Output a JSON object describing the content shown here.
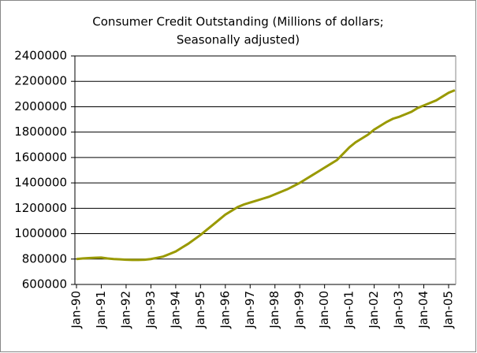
{
  "chart_data": {
    "type": "line",
    "title": [
      "Consumer Credit Outstanding (Millions of dollars;",
      "Seasonally adjusted)"
    ],
    "categories": [
      "Jan-90",
      null,
      null,
      null,
      "Jan-91",
      null,
      null,
      null,
      "Jan-92",
      null,
      null,
      null,
      "Jan-93",
      null,
      null,
      null,
      "Jan-94",
      null,
      null,
      null,
      "Jan-95",
      null,
      null,
      null,
      "Jan-96",
      null,
      null,
      null,
      "Jan-97",
      null,
      null,
      null,
      "Jan-98",
      null,
      null,
      null,
      "Jan-99",
      null,
      null,
      null,
      "Jan-00",
      null,
      null,
      null,
      "Jan-01",
      null,
      null,
      null,
      "Jan-02",
      null,
      null,
      null,
      "Jan-03",
      null,
      null,
      null,
      "Jan-04",
      null,
      null,
      null,
      "Jan-05",
      null
    ],
    "values": [
      800000,
      805000,
      808000,
      810000,
      812000,
      805000,
      800000,
      798000,
      795000,
      793000,
      793000,
      795000,
      800000,
      810000,
      820000,
      840000,
      860000,
      890000,
      920000,
      955000,
      990000,
      1030000,
      1070000,
      1110000,
      1150000,
      1180000,
      1210000,
      1230000,
      1245000,
      1260000,
      1275000,
      1290000,
      1310000,
      1330000,
      1350000,
      1375000,
      1400000,
      1430000,
      1460000,
      1490000,
      1520000,
      1550000,
      1580000,
      1630000,
      1680000,
      1720000,
      1750000,
      1780000,
      1820000,
      1850000,
      1880000,
      1905000,
      1920000,
      1940000,
      1960000,
      1990000,
      2010000,
      2030000,
      2050000,
      2080000,
      2110000,
      2130000
    ],
    "color": "#999900",
    "ylim": [
      600000,
      2400000
    ],
    "yticks": [
      600000,
      800000,
      1000000,
      1200000,
      1400000,
      1600000,
      1800000,
      2000000,
      2200000,
      2400000
    ],
    "grid": true
  }
}
